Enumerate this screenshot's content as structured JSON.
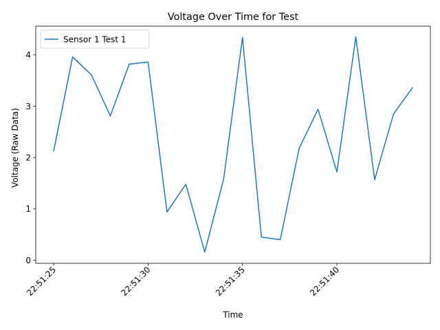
{
  "chart_data": {
    "type": "line",
    "title": "Voltage Over Time for Test",
    "xlabel": "Time",
    "ylabel": "Voltage (Raw Data)",
    "x": [
      "22:51:25",
      "22:51:26",
      "22:51:27",
      "22:51:28",
      "22:51:29",
      "22:51:30",
      "22:51:31",
      "22:51:32",
      "22:51:33",
      "22:51:34",
      "22:51:35",
      "22:51:36",
      "22:51:37",
      "22:51:38",
      "22:51:39",
      "22:51:40",
      "22:51:41",
      "22:51:42",
      "22:51:43",
      "22:51:44"
    ],
    "x_ticks": [
      "22:51:25",
      "22:51:30",
      "22:51:35",
      "22:51:40"
    ],
    "y_ticks": [
      0,
      1,
      2,
      3,
      4
    ],
    "ylim": [
      -0.06,
      4.56
    ],
    "xlim": [
      "22:51:24.05",
      "22:51:44.95"
    ],
    "grid": false,
    "legend_position": "upper-left",
    "series": [
      {
        "name": "Sensor 1 Test 1",
        "color": "#1f77b4",
        "values": [
          2.13,
          3.96,
          3.61,
          2.81,
          3.82,
          3.86,
          0.94,
          1.48,
          0.16,
          1.58,
          4.34,
          0.45,
          0.4,
          2.18,
          2.94,
          1.72,
          4.35,
          1.57,
          2.85,
          3.36
        ]
      }
    ]
  }
}
